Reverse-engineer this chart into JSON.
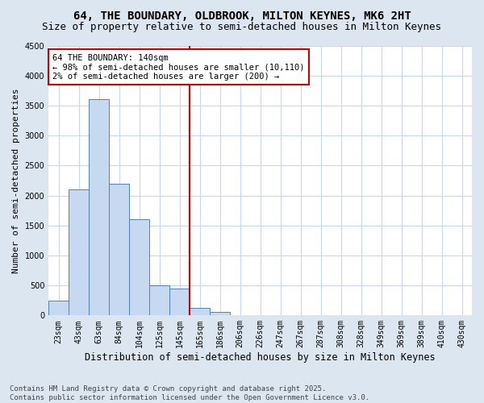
{
  "title1": "64, THE BOUNDARY, OLDBROOK, MILTON KEYNES, MK6 2HT",
  "title2": "Size of property relative to semi-detached houses in Milton Keynes",
  "xlabel": "Distribution of semi-detached houses by size in Milton Keynes",
  "ylabel": "Number of semi-detached properties",
  "footnote": "Contains HM Land Registry data © Crown copyright and database right 2025.\nContains public sector information licensed under the Open Government Licence v3.0.",
  "bar_labels": [
    "23sqm",
    "43sqm",
    "63sqm",
    "84sqm",
    "104sqm",
    "125sqm",
    "145sqm",
    "165sqm",
    "186sqm",
    "206sqm",
    "226sqm",
    "247sqm",
    "267sqm",
    "287sqm",
    "308sqm",
    "328sqm",
    "349sqm",
    "369sqm",
    "389sqm",
    "410sqm",
    "430sqm"
  ],
  "bar_values": [
    250,
    2100,
    3600,
    2200,
    1600,
    500,
    450,
    125,
    60,
    0,
    0,
    0,
    0,
    0,
    0,
    0,
    0,
    0,
    0,
    0,
    0
  ],
  "bar_color": "#c6d9f1",
  "bar_edge_color": "#4f81bd",
  "red_line_x": 6.5,
  "ylim": [
    0,
    4500
  ],
  "yticks": [
    0,
    500,
    1000,
    1500,
    2000,
    2500,
    3000,
    3500,
    4000,
    4500
  ],
  "annotation_title": "64 THE BOUNDARY: 140sqm",
  "annotation_line1": "← 98% of semi-detached houses are smaller (10,110)",
  "annotation_line2": "2% of semi-detached houses are larger (200) →",
  "annotation_box_color": "#ffffff",
  "annotation_box_edge_color": "#cc0000",
  "fig_bg_color": "#dce6f1",
  "plot_bg_color": "#ffffff",
  "grid_color": "#c8d8ec",
  "title1_fontsize": 10,
  "title2_fontsize": 9,
  "xlabel_fontsize": 8.5,
  "ylabel_fontsize": 8,
  "tick_fontsize": 7,
  "footnote_fontsize": 6.5,
  "annotation_fontsize": 7.5
}
